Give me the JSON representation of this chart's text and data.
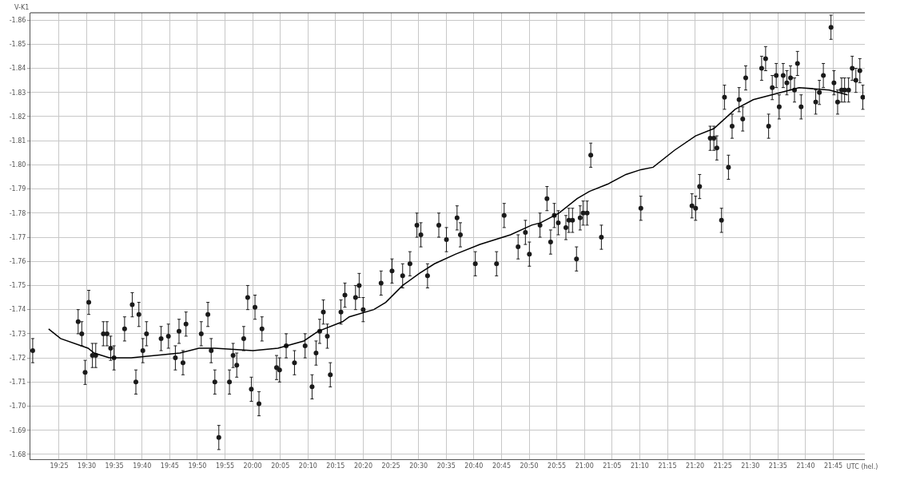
{
  "chart_data": {
    "type": "scatter",
    "ylabel": "V-K1",
    "marker": "circle",
    "grid": true,
    "xlim": [
      19.33,
      21.845
    ],
    "ylim": [
      -1.678,
      -1.863
    ],
    "xticks": [
      {
        "value": 19.4167,
        "label": "19:25"
      },
      {
        "value": 19.5,
        "label": "19:30"
      },
      {
        "value": 19.5833,
        "label": "19:35"
      },
      {
        "value": 19.6667,
        "label": "19:40"
      },
      {
        "value": 19.75,
        "label": "19:45"
      },
      {
        "value": 19.8333,
        "label": "19:50"
      },
      {
        "value": 19.9167,
        "label": "19:55"
      },
      {
        "value": 20,
        "label": "20:00"
      },
      {
        "value": 20.0833,
        "label": "20:05"
      },
      {
        "value": 20.1667,
        "label": "20:10"
      },
      {
        "value": 20.25,
        "label": "20:15"
      },
      {
        "value": 20.3333,
        "label": "20:20"
      },
      {
        "value": 20.4167,
        "label": "20:25"
      },
      {
        "value": 20.5,
        "label": "20:30"
      },
      {
        "value": 20.5833,
        "label": "20:35"
      },
      {
        "value": 20.6667,
        "label": "20:40"
      },
      {
        "value": 20.75,
        "label": "20:45"
      },
      {
        "value": 20.8333,
        "label": "20:50"
      },
      {
        "value": 20.9167,
        "label": "20:55"
      },
      {
        "value": 21,
        "label": "21:00"
      },
      {
        "value": 21.0833,
        "label": "21:05"
      },
      {
        "value": 21.1667,
        "label": "21:10"
      },
      {
        "value": 21.25,
        "label": "21:15"
      },
      {
        "value": 21.3333,
        "label": "21:20"
      },
      {
        "value": 21.4167,
        "label": "21:25"
      },
      {
        "value": 21.5,
        "label": "21:30"
      },
      {
        "value": 21.5833,
        "label": "21:35"
      },
      {
        "value": 21.6667,
        "label": "21:40"
      },
      {
        "value": 21.75,
        "label": "21:45"
      }
    ],
    "xlabel": "UTC (hel.)",
    "yticks": [
      {
        "value": -1.68,
        "label": "-1.68"
      },
      {
        "value": -1.69,
        "label": "-1.69"
      },
      {
        "value": -1.7,
        "label": "-1.70"
      },
      {
        "value": -1.71,
        "label": "-1.71"
      },
      {
        "value": -1.72,
        "label": "-1.72"
      },
      {
        "value": -1.73,
        "label": "-1.73"
      },
      {
        "value": -1.74,
        "label": "-1.74"
      },
      {
        "value": -1.75,
        "label": "-1.75"
      },
      {
        "value": -1.76,
        "label": "-1.76"
      },
      {
        "value": -1.77,
        "label": "-1.77"
      },
      {
        "value": -1.78,
        "label": "-1.78"
      },
      {
        "value": -1.79,
        "label": "-1.79"
      },
      {
        "value": -1.8,
        "label": "-1.80"
      },
      {
        "value": -1.81,
        "label": "-1.81"
      },
      {
        "value": -1.82,
        "label": "-1.82"
      },
      {
        "value": -1.83,
        "label": "-1.83"
      },
      {
        "value": -1.84,
        "label": "-1.84"
      },
      {
        "value": -1.85,
        "label": "-1.85"
      },
      {
        "value": -1.86,
        "label": "-1.86"
      }
    ],
    "series": [
      {
        "color": "#1a1a1a",
        "x": [
          19.337,
          19.474,
          19.485,
          19.495,
          19.506,
          19.517,
          19.527,
          19.55,
          19.561,
          19.572,
          19.582,
          19.614,
          19.637,
          19.648,
          19.657,
          19.669,
          19.68,
          19.724,
          19.746,
          19.767,
          19.778,
          19.79,
          19.799,
          19.845,
          19.865,
          19.875,
          19.886,
          19.898,
          19.93,
          19.941,
          19.952,
          19.973,
          19.985,
          19.996,
          20.007,
          20.019,
          20.028,
          20.072,
          20.081,
          20.101,
          20.126,
          20.158,
          20.179,
          20.191,
          20.202,
          20.213,
          20.225,
          20.234,
          20.266,
          20.278,
          20.31,
          20.321,
          20.333,
          20.387,
          20.42,
          20.452,
          20.474,
          20.495,
          20.507,
          20.527,
          20.561,
          20.584,
          20.616,
          20.626,
          20.671,
          20.735,
          20.758,
          20.8,
          20.822,
          20.834,
          20.866,
          20.887,
          20.898,
          20.909,
          20.921,
          20.944,
          20.953,
          20.964,
          20.976,
          20.987,
          20.996,
          21.008,
          21.019,
          21.051,
          21.17,
          21.324,
          21.335,
          21.347,
          21.379,
          21.39,
          21.399,
          21.413,
          21.422,
          21.434,
          21.445,
          21.466,
          21.477,
          21.486,
          21.534,
          21.546,
          21.555,
          21.566,
          21.578,
          21.587,
          21.599,
          21.61,
          21.621,
          21.633,
          21.642,
          21.653,
          21.697,
          21.708,
          21.72,
          21.743,
          21.752,
          21.763,
          21.775,
          21.784,
          21.796,
          21.807,
          21.818,
          21.83,
          21.839
        ],
        "values": [
          -1.723,
          -1.735,
          -1.73,
          -1.714,
          -1.743,
          -1.721,
          -1.721,
          -1.73,
          -1.73,
          -1.724,
          -1.72,
          -1.732,
          -1.742,
          -1.71,
          -1.738,
          -1.723,
          -1.73,
          -1.728,
          -1.729,
          -1.72,
          -1.731,
          -1.718,
          -1.734,
          -1.73,
          -1.738,
          -1.723,
          -1.71,
          -1.687,
          -1.71,
          -1.721,
          -1.717,
          -1.728,
          -1.745,
          -1.707,
          -1.741,
          -1.701,
          -1.732,
          -1.716,
          -1.715,
          -1.725,
          -1.718,
          -1.725,
          -1.708,
          -1.722,
          -1.731,
          -1.739,
          -1.729,
          -1.713,
          -1.739,
          -1.746,
          -1.745,
          -1.75,
          -1.74,
          -1.751,
          -1.756,
          -1.754,
          -1.759,
          -1.775,
          -1.771,
          -1.754,
          -1.775,
          -1.769,
          -1.778,
          -1.771,
          -1.759,
          -1.759,
          -1.779,
          -1.766,
          -1.772,
          -1.763,
          -1.775,
          -1.786,
          -1.768,
          -1.779,
          -1.776,
          -1.774,
          -1.777,
          -1.777,
          -1.761,
          -1.778,
          -1.78,
          -1.78,
          -1.804,
          -1.77,
          -1.782,
          -1.783,
          -1.782,
          -1.791,
          -1.811,
          -1.811,
          -1.807,
          -1.777,
          -1.828,
          -1.799,
          -1.816,
          -1.827,
          -1.819,
          -1.836,
          -1.84,
          -1.844,
          -1.816,
          -1.832,
          -1.837,
          -1.824,
          -1.837,
          -1.834,
          -1.836,
          -1.831,
          -1.842,
          -1.824,
          -1.826,
          -1.83,
          -1.837,
          -1.857,
          -1.834,
          -1.826,
          -1.831,
          -1.831,
          -1.831,
          -1.84,
          -1.835,
          -1.839,
          -1.828
        ],
        "errors": [
          0.005,
          0.005,
          0.005,
          0.005,
          0.005,
          0.005,
          0.005,
          0.005,
          0.005,
          0.005,
          0.005,
          0.005,
          0.005,
          0.005,
          0.005,
          0.005,
          0.005,
          0.005,
          0.005,
          0.005,
          0.005,
          0.005,
          0.005,
          0.005,
          0.005,
          0.005,
          0.005,
          0.005,
          0.005,
          0.005,
          0.005,
          0.005,
          0.005,
          0.005,
          0.005,
          0.005,
          0.005,
          0.005,
          0.005,
          0.005,
          0.005,
          0.005,
          0.005,
          0.005,
          0.005,
          0.005,
          0.005,
          0.005,
          0.005,
          0.005,
          0.005,
          0.005,
          0.005,
          0.005,
          0.005,
          0.005,
          0.005,
          0.005,
          0.005,
          0.005,
          0.005,
          0.005,
          0.005,
          0.005,
          0.005,
          0.005,
          0.005,
          0.005,
          0.005,
          0.005,
          0.005,
          0.005,
          0.005,
          0.005,
          0.005,
          0.005,
          0.005,
          0.005,
          0.005,
          0.005,
          0.005,
          0.005,
          0.005,
          0.005,
          0.005,
          0.005,
          0.005,
          0.005,
          0.005,
          0.005,
          0.005,
          0.005,
          0.005,
          0.005,
          0.005,
          0.005,
          0.005,
          0.005,
          0.005,
          0.005,
          0.005,
          0.005,
          0.005,
          0.005,
          0.005,
          0.005,
          0.005,
          0.005,
          0.005,
          0.005,
          0.005,
          0.005,
          0.005,
          0.005,
          0.005,
          0.005,
          0.005,
          0.005,
          0.005,
          0.005,
          0.005,
          0.005,
          0.005
        ]
      },
      {
        "type": "line",
        "marker": "none",
        "line_style": "solid",
        "color": "#000000",
        "x": [
          19.385,
          19.421,
          19.504,
          19.522,
          19.568,
          19.634,
          19.781,
          19.838,
          19.886,
          20.001,
          20.076,
          20.154,
          20.197,
          20.271,
          20.291,
          20.365,
          20.401,
          20.452,
          20.502,
          20.548,
          20.612,
          20.685,
          20.777,
          20.841,
          20.868,
          20.923,
          20.978,
          21.015,
          21.07,
          21.125,
          21.17,
          21.207,
          21.271,
          21.335,
          21.39,
          21.454,
          21.509,
          21.592,
          21.647,
          21.738,
          21.793
        ],
        "values": [
          -1.732,
          -1.728,
          -1.724,
          -1.722,
          -1.72,
          -1.72,
          -1.722,
          -1.724,
          -1.724,
          -1.723,
          -1.724,
          -1.727,
          -1.731,
          -1.735,
          -1.737,
          -1.74,
          -1.743,
          -1.75,
          -1.755,
          -1.759,
          -1.763,
          -1.767,
          -1.771,
          -1.775,
          -1.776,
          -1.78,
          -1.786,
          -1.789,
          -1.792,
          -1.796,
          -1.798,
          -1.799,
          -1.806,
          -1.812,
          -1.815,
          -1.823,
          -1.827,
          -1.83,
          -1.832,
          -1.831,
          -1.829
        ]
      }
    ]
  }
}
